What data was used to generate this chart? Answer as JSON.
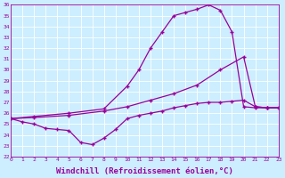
{
  "background_color": "#cceeff",
  "line_color": "#990099",
  "grid_color": "#ffffff",
  "xlabel": "Windchill (Refroidissement éolien,°C)",
  "xlabel_fontsize": 6.5,
  "xlim": [
    0,
    23
  ],
  "ylim": [
    22,
    36
  ],
  "ytick_values": [
    22,
    23,
    24,
    25,
    26,
    27,
    28,
    29,
    30,
    31,
    32,
    33,
    34,
    35,
    36
  ],
  "curve1_x": [
    0,
    1,
    2,
    3,
    4,
    5,
    6,
    7,
    8,
    9,
    10,
    11,
    12,
    13,
    14,
    15,
    16,
    17,
    18,
    19,
    20,
    21,
    22,
    23
  ],
  "curve1_y": [
    25.5,
    25.2,
    25.0,
    24.6,
    24.5,
    24.4,
    23.3,
    23.1,
    23.7,
    24.5,
    25.5,
    25.8,
    26.0,
    26.2,
    26.5,
    26.7,
    26.9,
    27.0,
    27.0,
    27.1,
    27.2,
    26.6,
    26.5,
    26.5
  ],
  "curve2_x": [
    0,
    2,
    5,
    8,
    10,
    12,
    14,
    16,
    18,
    20,
    21,
    22,
    23
  ],
  "curve2_y": [
    25.5,
    25.6,
    25.8,
    26.2,
    26.6,
    27.2,
    27.8,
    28.6,
    30.0,
    31.2,
    26.6,
    26.5,
    26.5
  ],
  "curve3_x": [
    0,
    2,
    5,
    8,
    10,
    11,
    12,
    13,
    14,
    15,
    16,
    17,
    18,
    19,
    20,
    21,
    22,
    23
  ],
  "curve3_y": [
    25.5,
    25.7,
    26.0,
    26.4,
    28.5,
    30.0,
    32.0,
    33.5,
    35.0,
    35.3,
    35.6,
    36.0,
    35.5,
    33.5,
    26.6,
    26.5,
    26.5,
    26.5
  ],
  "marker": "+",
  "markersize": 3,
  "linewidth": 0.9
}
